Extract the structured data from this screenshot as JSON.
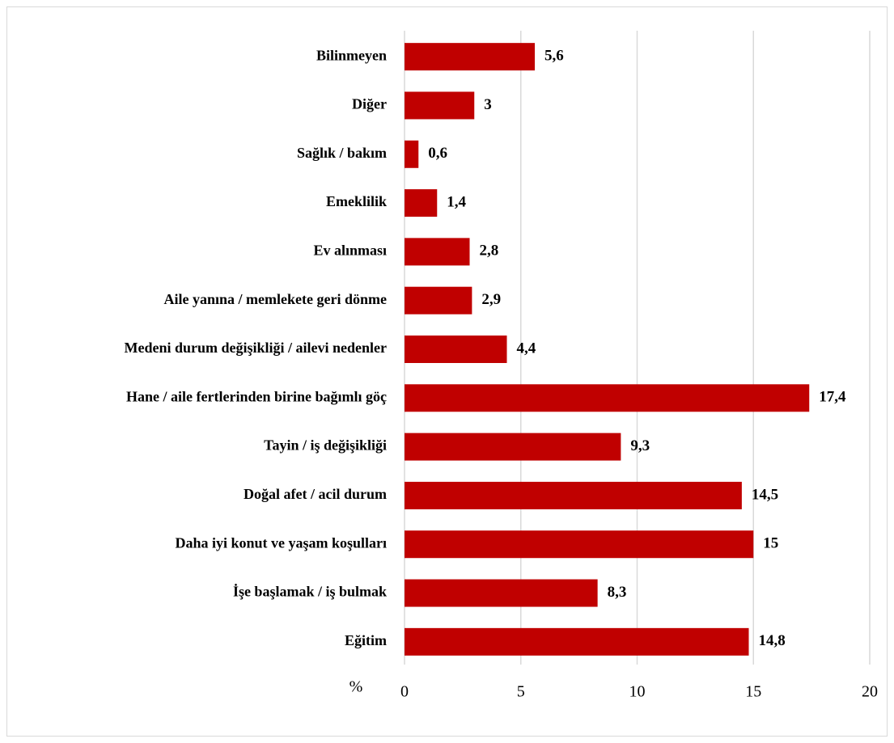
{
  "chart_data": {
    "type": "barh",
    "xlabel": "%",
    "categories": [
      "Bilinmeyen",
      "Diğer",
      "Sağlık / bakım",
      "Emeklilik",
      "Ev alınması",
      "Aile yanına / memlekete geri dönme",
      "Medeni durum değişikliği / ailevi nedenler",
      "Hane / aile fertlerinden birine bağımlı göç",
      "Tayin / iş değişikliği",
      "Doğal afet / acil durum",
      "Daha iyi konut ve yaşam koşulları",
      "İşe başlamak / iş bulmak",
      "Eğitim"
    ],
    "values": [
      5.6,
      3,
      0.6,
      1.4,
      2.8,
      2.9,
      4.4,
      17.4,
      9.3,
      14.5,
      15,
      8.3,
      14.8
    ],
    "value_labels": [
      "5,6",
      "3",
      "0,6",
      "1,4",
      "2,8",
      "2,9",
      "4,4",
      "17,4",
      "9,3",
      "14,5",
      "15",
      "8,3",
      "14,8"
    ],
    "color": "#c00000",
    "xlim": [
      0,
      20
    ],
    "xticks": [
      0,
      5,
      10,
      15,
      20
    ],
    "grid": true
  }
}
